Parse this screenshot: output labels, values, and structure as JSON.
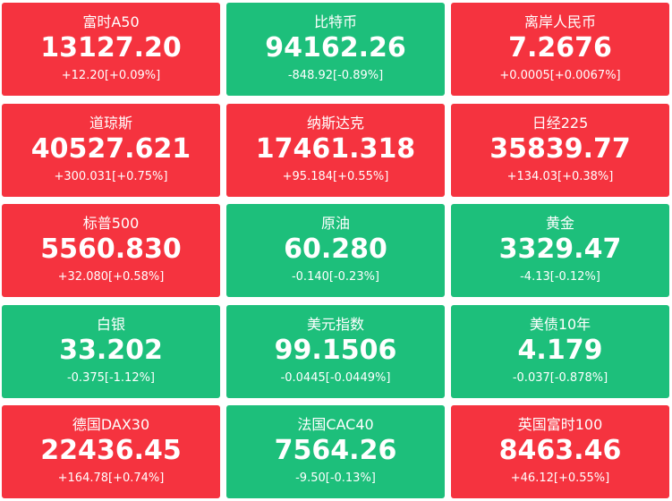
{
  "tiles": [
    {
      "name": "富时A50",
      "price": "13127.20",
      "change": "+12.20[+0.09%]",
      "color": "#f5333f"
    },
    {
      "name": "比特币",
      "price": "94162.26",
      "change": "-848.92[-0.89%]",
      "color": "#1dbf7b"
    },
    {
      "name": "离岸人民币",
      "price": "7.2676",
      "change": "+0.0005[+0.0067%]",
      "color": "#f5333f"
    },
    {
      "name": "道琼斯",
      "price": "40527.621",
      "change": "+300.031[+0.75%]",
      "color": "#f5333f"
    },
    {
      "name": "纳斯达克",
      "price": "17461.318",
      "change": "+95.184[+0.55%]",
      "color": "#f5333f"
    },
    {
      "name": "日经225",
      "price": "35839.77",
      "change": "+134.03[+0.38%]",
      "color": "#f5333f"
    },
    {
      "name": "标普500",
      "price": "5560.830",
      "change": "+32.080[+0.58%]",
      "color": "#f5333f"
    },
    {
      "name": "原油",
      "price": "60.280",
      "change": "-0.140[-0.23%]",
      "color": "#1dbf7b"
    },
    {
      "name": "黄金",
      "price": "3329.47",
      "change": "-4.13[-0.12%]",
      "color": "#1dbf7b"
    },
    {
      "name": "白银",
      "price": "33.202",
      "change": "-0.375[-1.12%]",
      "color": "#1dbf7b"
    },
    {
      "name": "美元指数",
      "price": "99.1506",
      "change": "-0.0445[-0.0449%]",
      "color": "#1dbf7b"
    },
    {
      "name": "美债10年",
      "price": "4.179",
      "change": "-0.037[-0.878%]",
      "color": "#1dbf7b"
    },
    {
      "name": "德国DAX30",
      "price": "22436.45",
      "change": "+164.78[+0.74%]",
      "color": "#f5333f"
    },
    {
      "name": "法国CAC40",
      "price": "7564.26",
      "change": "-9.50[-0.13%]",
      "color": "#1dbf7b"
    },
    {
      "name": "英国富时100",
      "price": "8463.46",
      "change": "+46.12[+0.55%]",
      "color": "#f5333f"
    }
  ]
}
